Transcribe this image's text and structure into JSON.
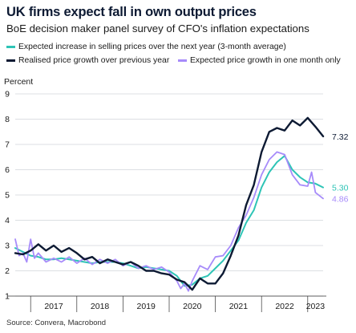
{
  "header": {
    "title": "UK firms expect fall in own output prices",
    "subtitle": "BoE decision maker panel survey of CFO's inflation expectations"
  },
  "footer": {
    "source": "Source: Convera, Macrobond"
  },
  "chart_data": {
    "type": "line",
    "title": "UK firms expect fall in own output prices",
    "subtitle": "BoE decision maker panel survey of CFO's inflation expectations",
    "ylabel": "Percent",
    "xlabel": "",
    "ylim": [
      1,
      9
    ],
    "yticks": [
      "1",
      "2",
      "3",
      "4",
      "5",
      "6",
      "7",
      "8",
      "9"
    ],
    "xlim": [
      "2016-09",
      "2023-05"
    ],
    "xticks": [
      "2017",
      "2018",
      "2019",
      "2020",
      "2021",
      "2022",
      "2023"
    ],
    "grid": true,
    "legend_position": "top",
    "series": [
      {
        "name": "Expected increase in selling prices over the next year (3-month average)",
        "color": "#2ec4b6",
        "end_label": "5.30",
        "points": [
          [
            "2016-09",
            2.9
          ],
          [
            "2016-11",
            2.75
          ],
          [
            "2017-01",
            2.6
          ],
          [
            "2017-03",
            2.55
          ],
          [
            "2017-05",
            2.45
          ],
          [
            "2017-07",
            2.45
          ],
          [
            "2017-09",
            2.5
          ],
          [
            "2017-11",
            2.45
          ],
          [
            "2018-01",
            2.4
          ],
          [
            "2018-03",
            2.35
          ],
          [
            "2018-05",
            2.3
          ],
          [
            "2018-07",
            2.35
          ],
          [
            "2018-09",
            2.35
          ],
          [
            "2018-11",
            2.35
          ],
          [
            "2019-01",
            2.3
          ],
          [
            "2019-03",
            2.2
          ],
          [
            "2019-05",
            2.1
          ],
          [
            "2019-07",
            2.15
          ],
          [
            "2019-09",
            2.1
          ],
          [
            "2019-11",
            2.05
          ],
          [
            "2020-01",
            2.0
          ],
          [
            "2020-03",
            1.8
          ],
          [
            "2020-05",
            1.4
          ],
          [
            "2020-07",
            1.45
          ],
          [
            "2020-09",
            1.7
          ],
          [
            "2020-11",
            1.8
          ],
          [
            "2021-01",
            2.1
          ],
          [
            "2021-03",
            2.4
          ],
          [
            "2021-05",
            2.8
          ],
          [
            "2021-07",
            3.2
          ],
          [
            "2021-09",
            3.9
          ],
          [
            "2021-11",
            4.4
          ],
          [
            "2022-01",
            5.3
          ],
          [
            "2022-03",
            5.9
          ],
          [
            "2022-05",
            6.3
          ],
          [
            "2022-07",
            6.55
          ],
          [
            "2022-09",
            6.0
          ],
          [
            "2022-11",
            5.7
          ],
          [
            "2023-01",
            5.5
          ],
          [
            "2023-03",
            5.45
          ],
          [
            "2023-05",
            5.3
          ]
        ]
      },
      {
        "name": "Realised price growth over previous year",
        "color": "#0d1a33",
        "end_label": "7.32",
        "points": [
          [
            "2016-09",
            2.7
          ],
          [
            "2016-11",
            2.65
          ],
          [
            "2017-01",
            2.8
          ],
          [
            "2017-03",
            3.05
          ],
          [
            "2017-05",
            2.8
          ],
          [
            "2017-07",
            3.0
          ],
          [
            "2017-09",
            2.75
          ],
          [
            "2017-11",
            2.9
          ],
          [
            "2018-01",
            2.7
          ],
          [
            "2018-03",
            2.45
          ],
          [
            "2018-05",
            2.55
          ],
          [
            "2018-07",
            2.3
          ],
          [
            "2018-09",
            2.45
          ],
          [
            "2018-11",
            2.35
          ],
          [
            "2019-01",
            2.25
          ],
          [
            "2019-03",
            2.35
          ],
          [
            "2019-05",
            2.2
          ],
          [
            "2019-07",
            2.0
          ],
          [
            "2019-09",
            2.0
          ],
          [
            "2019-11",
            1.9
          ],
          [
            "2020-01",
            1.85
          ],
          [
            "2020-03",
            1.65
          ],
          [
            "2020-05",
            1.55
          ],
          [
            "2020-07",
            1.25
          ],
          [
            "2020-09",
            1.7
          ],
          [
            "2020-11",
            1.5
          ],
          [
            "2021-01",
            1.5
          ],
          [
            "2021-03",
            1.9
          ],
          [
            "2021-05",
            2.6
          ],
          [
            "2021-07",
            3.4
          ],
          [
            "2021-09",
            4.6
          ],
          [
            "2021-11",
            5.4
          ],
          [
            "2022-01",
            6.7
          ],
          [
            "2022-03",
            7.5
          ],
          [
            "2022-05",
            7.65
          ],
          [
            "2022-07",
            7.55
          ],
          [
            "2022-09",
            7.95
          ],
          [
            "2022-11",
            7.75
          ],
          [
            "2023-01",
            8.05
          ],
          [
            "2023-03",
            7.7
          ],
          [
            "2023-05",
            7.32
          ]
        ]
      },
      {
        "name": "Expected price growth in one month only",
        "color": "#a78bfa",
        "end_label": "4.86",
        "points": [
          [
            "2016-09",
            3.25
          ],
          [
            "2016-10",
            2.6
          ],
          [
            "2016-11",
            2.7
          ],
          [
            "2016-12",
            2.35
          ],
          [
            "2017-01",
            3.25
          ],
          [
            "2017-02",
            2.5
          ],
          [
            "2017-03",
            2.7
          ],
          [
            "2017-05",
            2.35
          ],
          [
            "2017-07",
            2.5
          ],
          [
            "2017-09",
            2.35
          ],
          [
            "2017-11",
            2.55
          ],
          [
            "2018-01",
            2.3
          ],
          [
            "2018-03",
            2.5
          ],
          [
            "2018-05",
            2.25
          ],
          [
            "2018-07",
            2.45
          ],
          [
            "2018-09",
            2.3
          ],
          [
            "2018-11",
            2.45
          ],
          [
            "2019-01",
            2.2
          ],
          [
            "2019-03",
            2.35
          ],
          [
            "2019-05",
            2.1
          ],
          [
            "2019-07",
            2.2
          ],
          [
            "2019-09",
            2.05
          ],
          [
            "2019-11",
            2.15
          ],
          [
            "2020-01",
            1.95
          ],
          [
            "2020-03",
            1.6
          ],
          [
            "2020-04",
            1.3
          ],
          [
            "2020-05",
            1.5
          ],
          [
            "2020-06",
            1.2
          ],
          [
            "2020-07",
            1.6
          ],
          [
            "2020-09",
            2.2
          ],
          [
            "2020-11",
            2.05
          ],
          [
            "2021-01",
            2.55
          ],
          [
            "2021-03",
            2.6
          ],
          [
            "2021-05",
            3.0
          ],
          [
            "2021-07",
            3.7
          ],
          [
            "2021-09",
            4.2
          ],
          [
            "2021-11",
            4.9
          ],
          [
            "2022-01",
            5.8
          ],
          [
            "2022-03",
            6.4
          ],
          [
            "2022-05",
            6.7
          ],
          [
            "2022-07",
            6.6
          ],
          [
            "2022-09",
            5.8
          ],
          [
            "2022-11",
            5.4
          ],
          [
            "2023-01",
            5.35
          ],
          [
            "2023-02",
            5.9
          ],
          [
            "2023-03",
            5.1
          ],
          [
            "2023-05",
            4.86
          ]
        ]
      }
    ]
  }
}
